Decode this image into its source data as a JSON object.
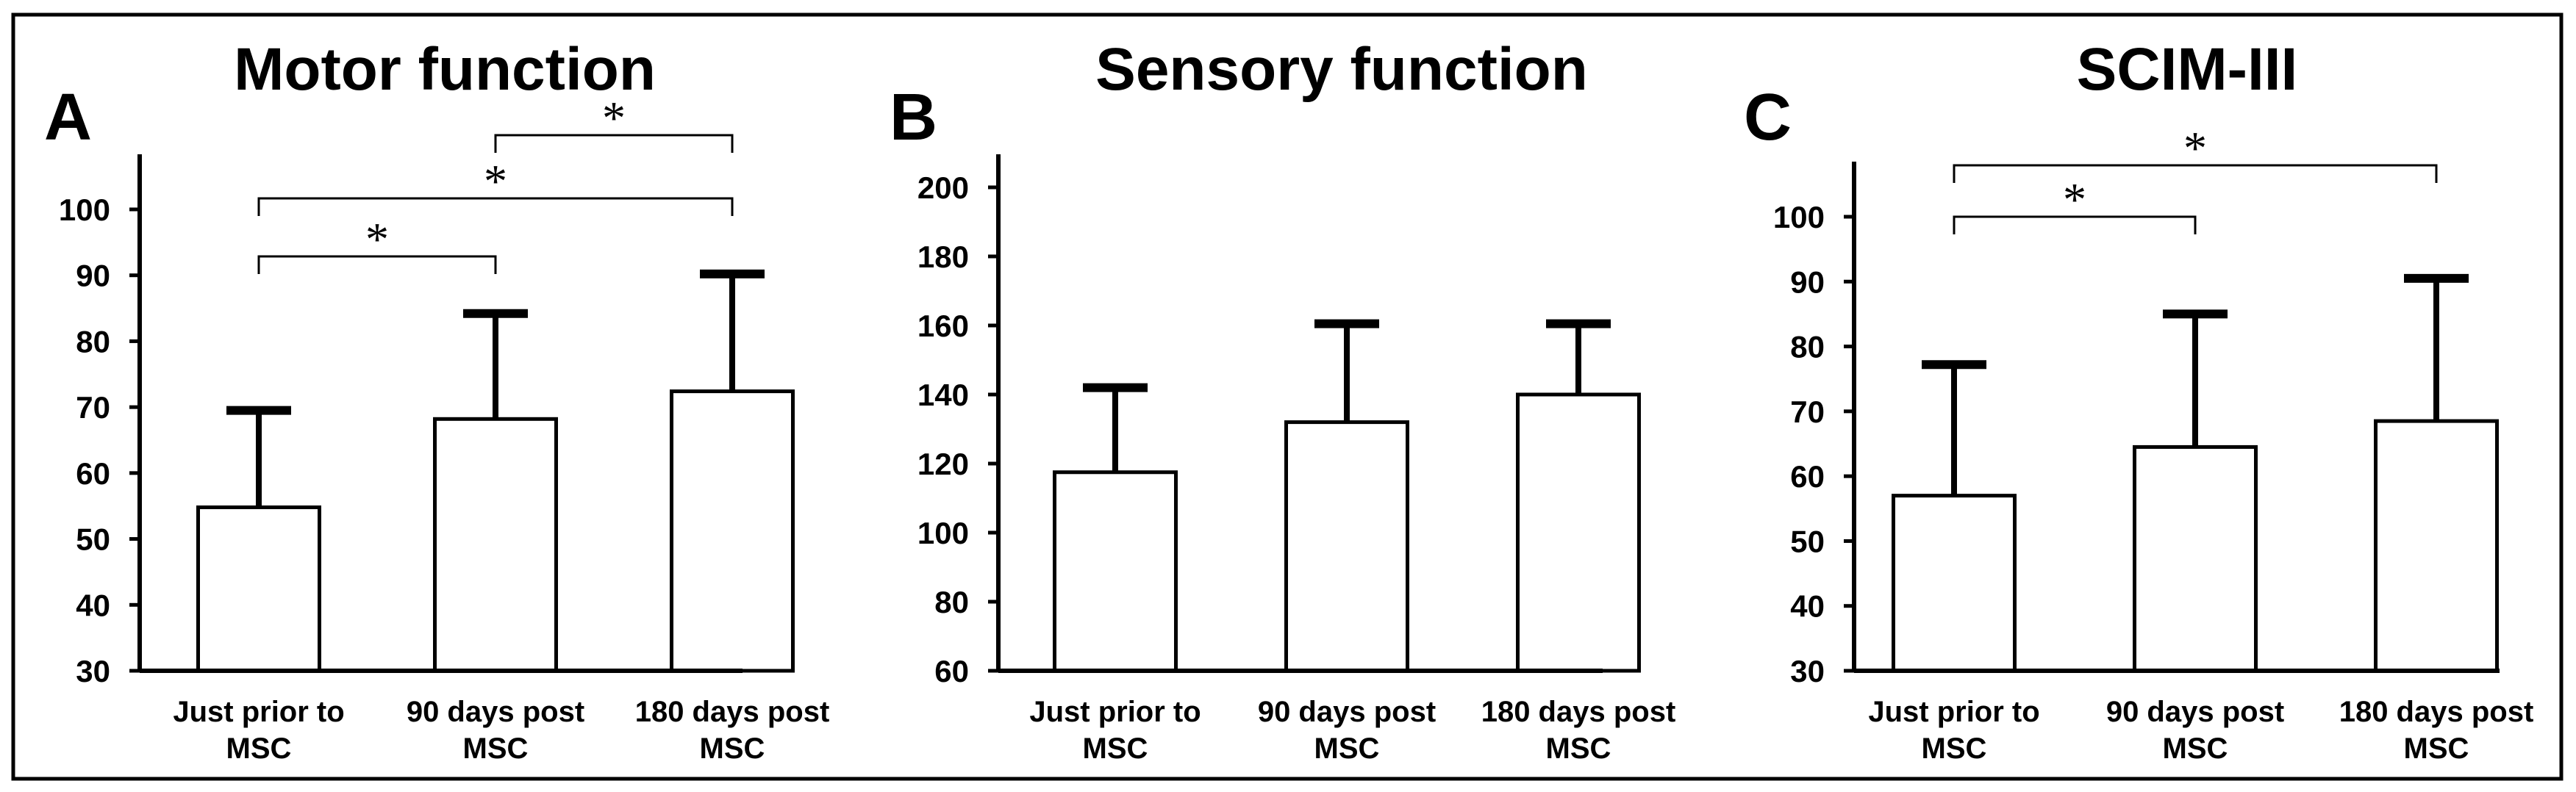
{
  "colors": {
    "bar_fill": "#ffffff",
    "stroke": "#000000",
    "background": "#ffffff"
  },
  "chart_data": [
    {
      "type": "bar",
      "panel_letter": "A",
      "title": "Motor function",
      "categories": [
        [
          "Just prior to",
          "MSC"
        ],
        [
          "90 days post",
          "MSC"
        ],
        [
          "180 days post",
          "MSC"
        ]
      ],
      "values": [
        54.8,
        68.2,
        72.4
      ],
      "error_upper": [
        69.5,
        84.2,
        90.2
      ],
      "ylim": [
        30,
        100
      ],
      "yticks": [
        30,
        40,
        50,
        60,
        70,
        80,
        90,
        100
      ],
      "xlabel": "",
      "ylabel": "",
      "significance": [
        {
          "from": 0,
          "to": 1,
          "label": "*"
        },
        {
          "from": 0,
          "to": 2,
          "label": "*"
        },
        {
          "from": 1,
          "to": 2,
          "label": "*"
        }
      ]
    },
    {
      "type": "bar",
      "panel_letter": "B",
      "title": "Sensory function",
      "categories": [
        [
          "Just prior to",
          "MSC"
        ],
        [
          "90 days post",
          "MSC"
        ],
        [
          "180 days post",
          "MSC"
        ]
      ],
      "values": [
        117.5,
        132.0,
        140.0
      ],
      "error_upper": [
        142.0,
        160.5,
        160.5
      ],
      "ylim": [
        60,
        200
      ],
      "yticks": [
        60,
        80,
        100,
        120,
        140,
        160,
        180,
        200
      ],
      "xlabel": "",
      "ylabel": "",
      "significance": []
    },
    {
      "type": "bar",
      "panel_letter": "C",
      "title": "SCIM-III",
      "categories": [
        [
          "Just prior to",
          "MSC"
        ],
        [
          "90 days post",
          "MSC"
        ],
        [
          "180 days post",
          "MSC"
        ]
      ],
      "values": [
        57.0,
        64.5,
        68.5
      ],
      "error_upper": [
        77.2,
        85.0,
        90.5
      ],
      "ylim": [
        30,
        100
      ],
      "yticks": [
        30,
        40,
        50,
        60,
        70,
        80,
        90,
        100
      ],
      "xlabel": "",
      "ylabel": "",
      "significance": [
        {
          "from": 0,
          "to": 1,
          "label": "*"
        },
        {
          "from": 0,
          "to": 2,
          "label": "*"
        }
      ]
    }
  ]
}
